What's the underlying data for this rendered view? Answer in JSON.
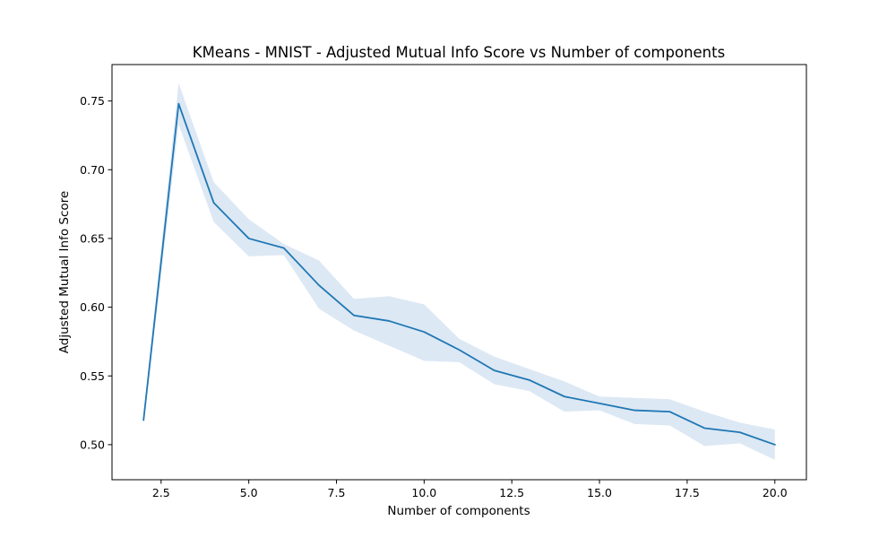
{
  "chart_data": {
    "type": "line",
    "title": "KMeans - MNIST - Adjusted Mutual Info Score vs Number of components",
    "xlabel": "Number of components",
    "ylabel": "Adjusted Mutual Info Score",
    "xlim": [
      1.1,
      20.9
    ],
    "ylim": [
      0.4745,
      0.7765
    ],
    "x_ticks": [
      2.5,
      5.0,
      7.5,
      10.0,
      12.5,
      15.0,
      17.5,
      20.0
    ],
    "x_tick_labels": [
      "2.5",
      "5.0",
      "7.5",
      "10.0",
      "12.5",
      "15.0",
      "17.5",
      "20.0"
    ],
    "y_ticks": [
      0.5,
      0.55,
      0.6,
      0.65,
      0.7,
      0.75
    ],
    "y_tick_labels": [
      "0.50",
      "0.55",
      "0.60",
      "0.65",
      "0.70",
      "0.75"
    ],
    "grid": false,
    "legend": "none",
    "line_color": "#1f77b4",
    "band_color": "#dce8f4",
    "series": [
      {
        "x": [
          2,
          3,
          4,
          5,
          6,
          7,
          8,
          9,
          10,
          11,
          12,
          13,
          14,
          15,
          16,
          17,
          18,
          19,
          20
        ],
        "y": [
          0.518,
          0.748,
          0.676,
          0.65,
          0.643,
          0.616,
          0.594,
          0.59,
          0.582,
          0.569,
          0.554,
          0.547,
          0.535,
          0.53,
          0.525,
          0.524,
          0.512,
          0.509,
          0.5
        ],
        "lower": [
          0.514,
          0.733,
          0.662,
          0.637,
          0.638,
          0.599,
          0.583,
          0.572,
          0.561,
          0.56,
          0.544,
          0.539,
          0.524,
          0.525,
          0.515,
          0.514,
          0.499,
          0.501,
          0.489
        ],
        "upper": [
          0.522,
          0.763,
          0.691,
          0.664,
          0.646,
          0.634,
          0.606,
          0.608,
          0.602,
          0.577,
          0.564,
          0.555,
          0.546,
          0.535,
          0.534,
          0.533,
          0.524,
          0.516,
          0.511
        ]
      }
    ]
  }
}
